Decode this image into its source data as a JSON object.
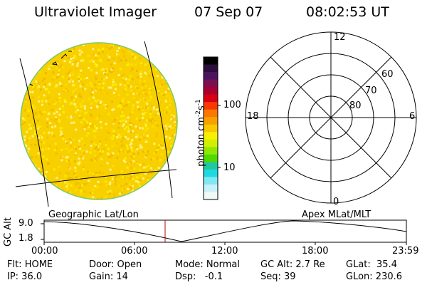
{
  "header": {
    "instrument": "Ultraviolet Imager",
    "date": "07 Sep 07",
    "time": "08:02:53 UT"
  },
  "earth_panel": {
    "label": "Geographic Lat/Lon"
  },
  "colorbar": {
    "unit_label": "photon cm",
    "unit_exp1": "-2",
    "unit_mid": "s",
    "unit_exp2": "-1",
    "ticks": [
      "100",
      "10"
    ],
    "colors": [
      "#000000",
      "#2a0f3a",
      "#4b1460",
      "#7a1050",
      "#a80030",
      "#d80010",
      "#f83800",
      "#f87800",
      "#f8a000",
      "#f8c800",
      "#f8f000",
      "#d0f000",
      "#90e800",
      "#50d800",
      "#20c8a0",
      "#20d8e0",
      "#80e8f0",
      "#c8f0f8",
      "#f0f8f8"
    ]
  },
  "polar_panel": {
    "label": "Apex MLat/MLT",
    "mlt_labels": {
      "top": "12",
      "left": "18",
      "right": "6",
      "bottom": "0"
    },
    "lat_labels": [
      "60",
      "70",
      "80"
    ]
  },
  "altitude_track": {
    "axis_label": "GC Alt",
    "y_ticks": [
      "9.0",
      "1.8"
    ],
    "x_ticks": [
      "00:00",
      "06:00",
      "12:00",
      "18:00",
      "23:59"
    ],
    "marker_time": "08:02"
  },
  "status": {
    "flt": "Flt: HOME",
    "door": "Door: Open",
    "mode": "Mode: Normal",
    "gc_alt": "GC Alt: 2.7 Re",
    "glat": "GLat:  35.4",
    "ip": "IP: 36.0",
    "gain": "Gain: 14",
    "dsp": "Dsp:   -0.1",
    "seq": "Seq: 39",
    "glon": "GLon: 230.6"
  },
  "colors": {
    "disk_fill": "#f8d000",
    "disk_rim": "#7cc864",
    "marker": "#c00000"
  }
}
